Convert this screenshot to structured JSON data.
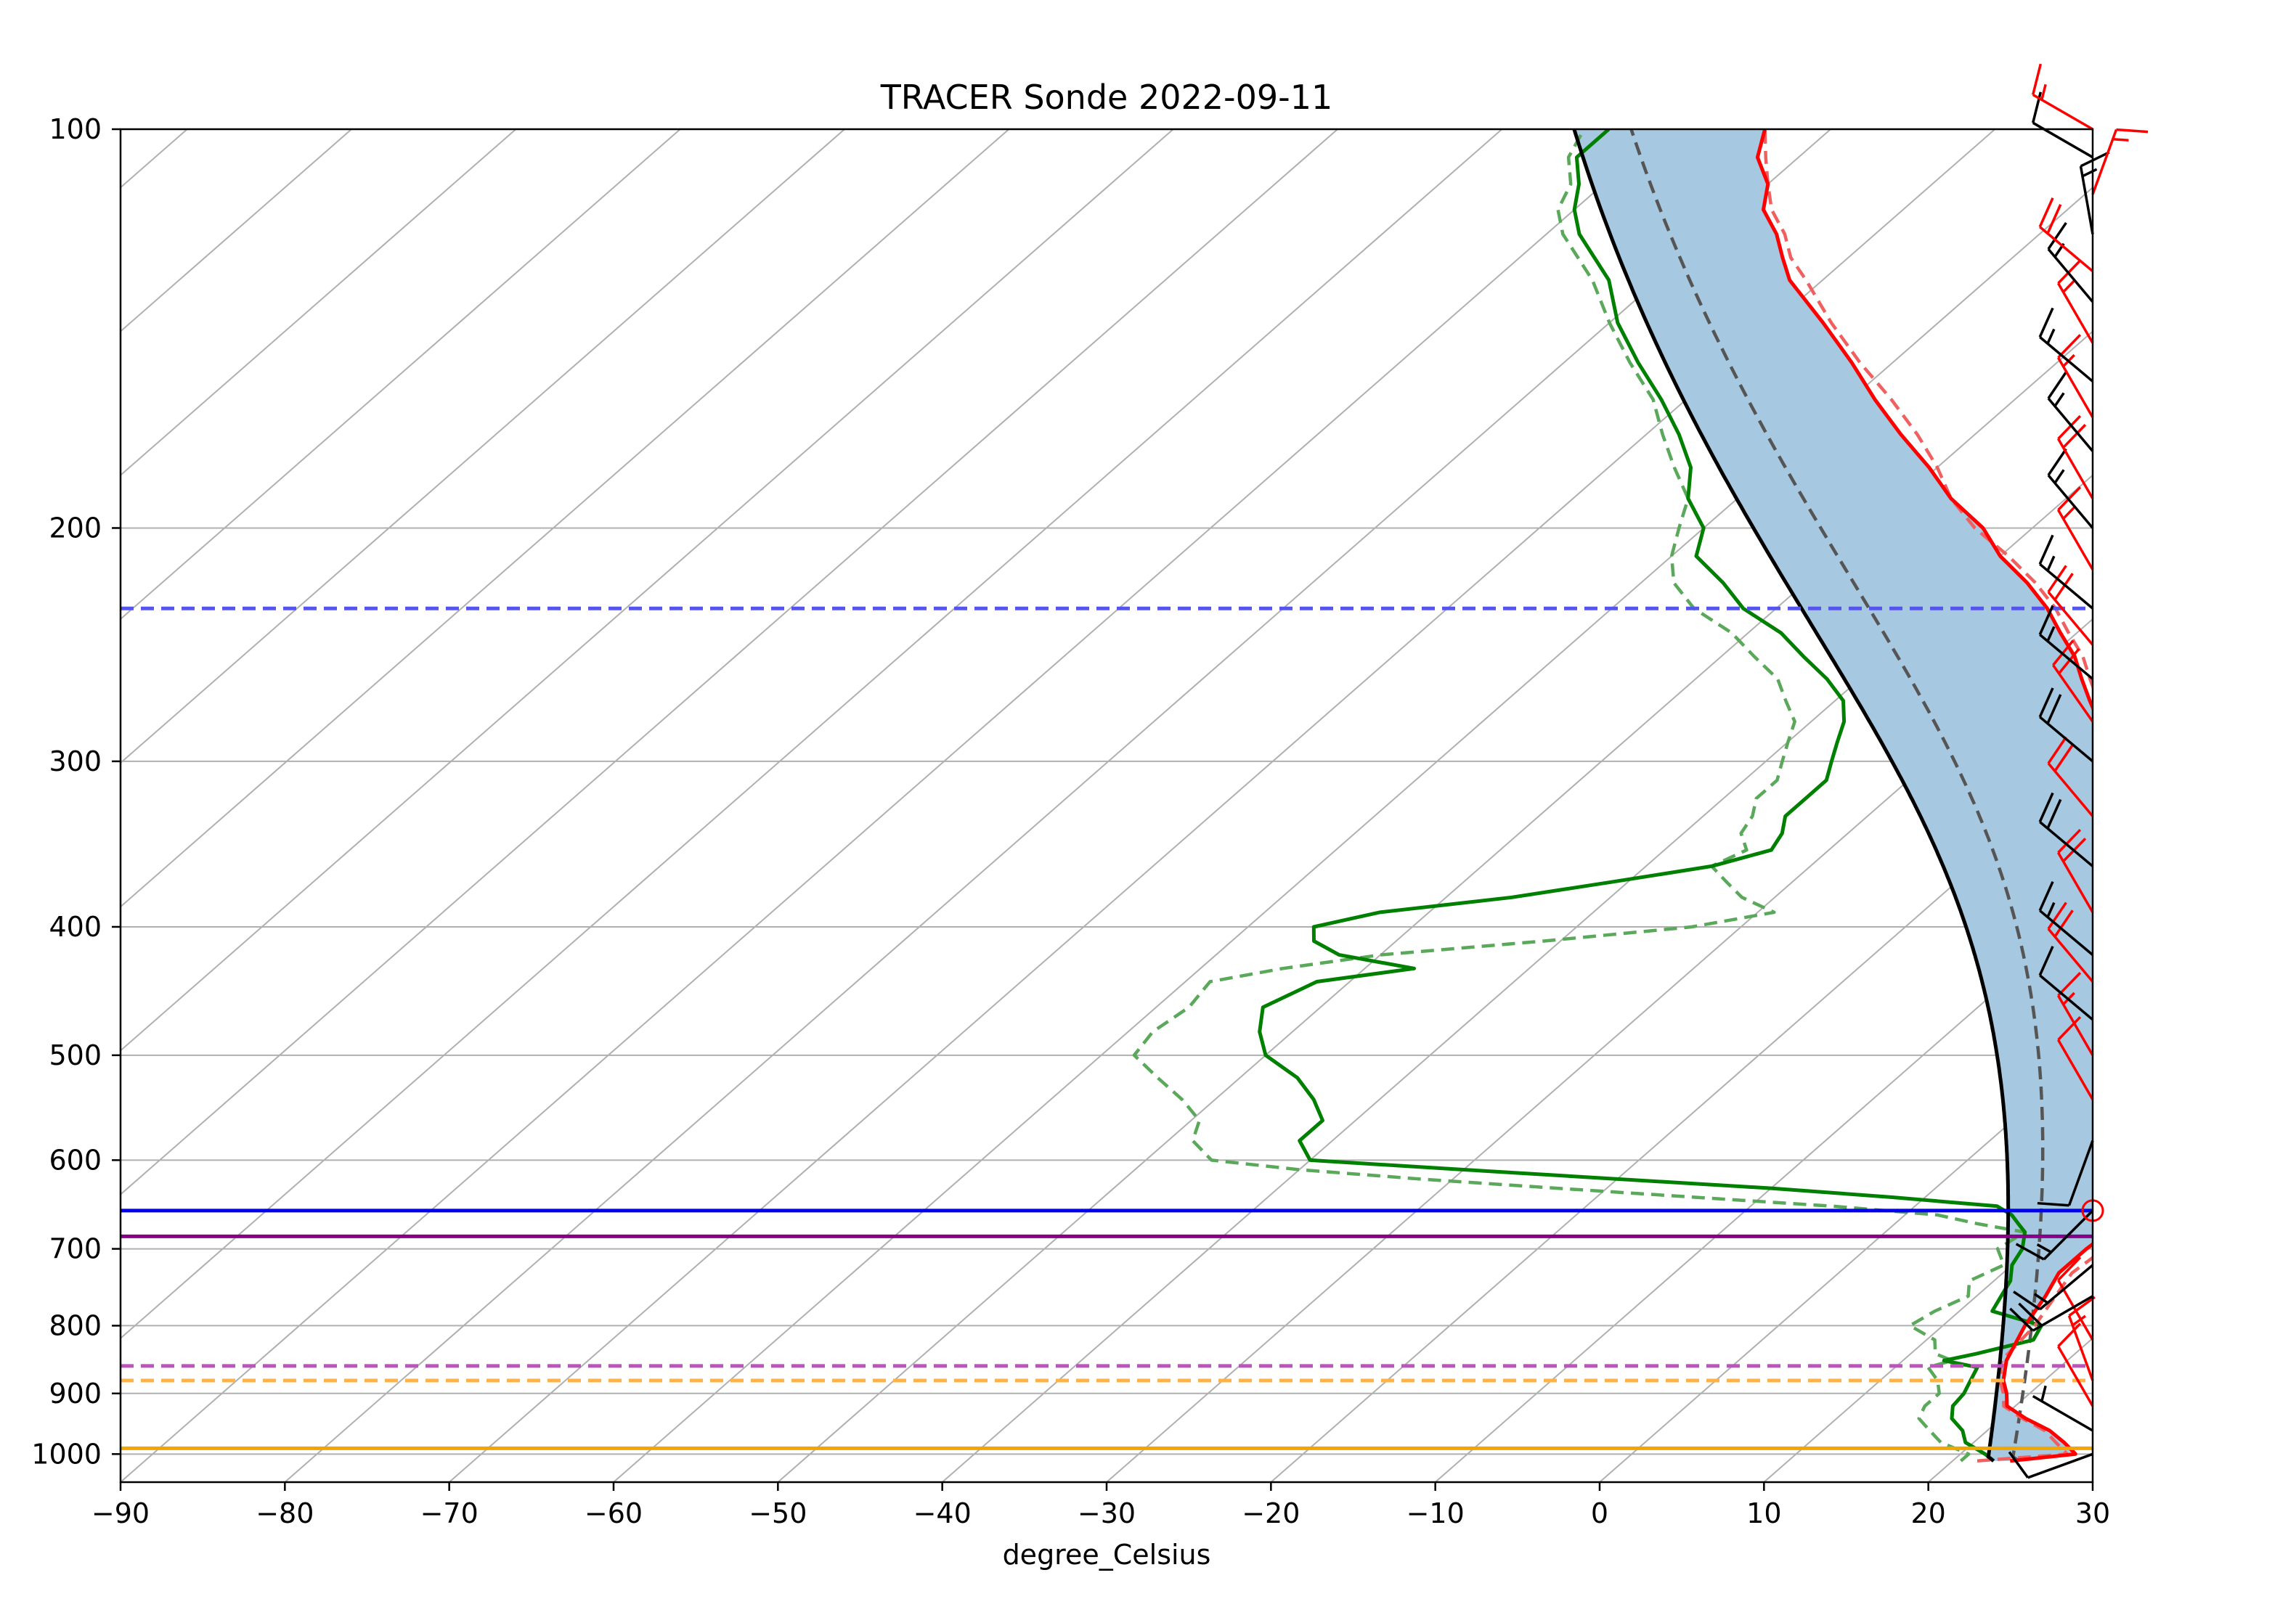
{
  "chart_data": {
    "type": "line",
    "title": "TRACER Sonde 2022-09-11",
    "xlabel": "degree_Celsius",
    "ylabel": "",
    "xlim": [
      -90,
      30
    ],
    "ylim": [
      1050,
      100
    ],
    "y_scale": "log",
    "x_ticks": [
      "−90",
      "−80",
      "−70",
      "−60",
      "−50",
      "−40",
      "−30",
      "−20",
      "−10",
      "0",
      "10",
      "20",
      "30"
    ],
    "y_ticks": [
      "100",
      "200",
      "300",
      "400",
      "500",
      "600",
      "700",
      "800",
      "900",
      "1000"
    ],
    "grid": true,
    "colors": {
      "temperature": "#ff0000",
      "temperature_dashed": "#f06060",
      "dewpoint": "#008000",
      "dewpoint_dashed": "#5aa85a",
      "parcel": "#000000",
      "virtual_parcel": "#555555",
      "cape_fill": "#a6c8e0",
      "grid": "#b0b0b0"
    },
    "series": [
      {
        "style": "red-solid",
        "p": [
          1012,
          1000,
          980,
          960,
          940,
          920,
          900,
          880,
          850,
          800,
          760,
          730,
          700,
          680,
          660,
          640,
          620,
          600,
          580,
          560,
          540,
          520,
          500,
          480,
          460,
          440,
          420,
          400,
          380,
          360,
          340,
          320,
          300,
          290,
          280,
          270,
          260,
          250,
          240,
          230,
          220,
          210,
          200,
          190,
          180,
          170,
          160,
          150,
          140,
          130,
          125,
          120,
          115,
          110,
          105,
          100
        ],
        "t": [
          23.5,
          27,
          25.5,
          23.8,
          21.5,
          19.5,
          18.6,
          17.5,
          16.3,
          15.0,
          14.2,
          13.4,
          13.4,
          13.6,
          14.3,
          15.3,
          16.3,
          15.5,
          13.9,
          12.5,
          10.5,
          8.5,
          7.0,
          5.0,
          3.0,
          0.5,
          -2.0,
          -4.5,
          -7.5,
          -10.5,
          -13.5,
          -16.5,
          -19.5,
          -21.0,
          -22.5,
          -24.5,
          -26.5,
          -28.5,
          -31.0,
          -33.5,
          -36.5,
          -40.0,
          -43.0,
          -47.0,
          -50.5,
          -54.5,
          -58.5,
          -62.5,
          -67.0,
          -72.0,
          -74.0,
          -76.0,
          -78.5,
          -80.0,
          -82.5,
          -84.0
        ]
      },
      {
        "style": "red-dashed",
        "p": [
          1012,
          1000,
          980,
          960,
          940,
          920,
          900,
          880,
          850,
          800,
          760,
          730,
          700,
          680,
          660,
          640,
          620,
          600,
          580,
          560,
          540,
          520,
          500,
          480,
          460,
          440,
          420,
          400,
          380,
          360,
          340,
          320,
          300,
          290,
          280,
          270,
          260,
          250,
          240,
          230,
          220,
          210,
          200,
          190,
          180,
          170,
          160,
          150,
          140,
          130,
          125,
          120,
          115,
          110,
          105,
          100
        ],
        "t": [
          21.5,
          26.5,
          25.0,
          23.5,
          21.3,
          19.3,
          18.4,
          17.3,
          16.0,
          15.6,
          14.8,
          14.2,
          14.5,
          15.2,
          15.5,
          16.0,
          16.3,
          15.5,
          14.4,
          13.0,
          11.0,
          9.0,
          7.5,
          5.5,
          3.5,
          1.0,
          -1.5,
          -4.0,
          -7.0,
          -10.0,
          -13.0,
          -16.0,
          -19.0,
          -20.5,
          -22.0,
          -24.0,
          -26.0,
          -28.0,
          -30.5,
          -33.0,
          -36.0,
          -39.5,
          -43.5,
          -47.0,
          -50.0,
          -53.5,
          -57.5,
          -62.0,
          -66.5,
          -71.0,
          -73.5,
          -75.5,
          -78.0,
          -80.0,
          -82.0,
          -84.0
        ]
      },
      {
        "style": "green-solid",
        "p": [
          1012,
          1000,
          980,
          960,
          940,
          920,
          900,
          880,
          860,
          850,
          840,
          820,
          800,
          780,
          760,
          740,
          720,
          700,
          680,
          670,
          660,
          650,
          640,
          630,
          620,
          610,
          600,
          580,
          560,
          540,
          520,
          500,
          480,
          460,
          440,
          430,
          420,
          410,
          400,
          390,
          380,
          370,
          360,
          350,
          340,
          330,
          320,
          310,
          300,
          290,
          280,
          270,
          260,
          250,
          240,
          230,
          220,
          210,
          200,
          190,
          180,
          170,
          160,
          150,
          140,
          130,
          120,
          115,
          110,
          105,
          100
        ],
        "t": [
          22.5,
          21.5,
          19.5,
          18.5,
          17.0,
          16.2,
          16.0,
          15.5,
          15.0,
          12.5,
          14.0,
          16.5,
          16.0,
          12.0,
          11.5,
          11.0,
          10.0,
          9.5,
          8.5,
          7.5,
          6.5,
          5.0,
          -2.0,
          -10.0,
          -20.0,
          -30.0,
          -40.0,
          -42.0,
          -42.0,
          -44.0,
          -46.5,
          -50.0,
          -52.0,
          -53.5,
          -52.0,
          -47.0,
          -52.5,
          -55.0,
          -56.0,
          -53.0,
          -46.0,
          -41.0,
          -36.0,
          -33.5,
          -34.0,
          -35.0,
          -35.0,
          -35.0,
          -36.0,
          -37.0,
          -38.0,
          -39.5,
          -42.0,
          -45.0,
          -48.0,
          -52.0,
          -55.0,
          -58.5,
          -60.0,
          -63.0,
          -65.0,
          -68.0,
          -71.5,
          -75.5,
          -79.5,
          -83.0,
          -88.0,
          -90.0,
          -91.5,
          -93.5,
          -93.5
        ]
      },
      {
        "style": "green-dashed",
        "p": [
          1012,
          1000,
          980,
          960,
          940,
          920,
          900,
          880,
          860,
          850,
          840,
          820,
          800,
          780,
          760,
          740,
          720,
          700,
          680,
          670,
          660,
          650,
          640,
          630,
          620,
          610,
          600,
          580,
          560,
          540,
          520,
          500,
          480,
          460,
          440,
          430,
          420,
          410,
          400,
          390,
          380,
          370,
          360,
          350,
          340,
          330,
          320,
          310,
          300,
          290,
          280,
          270,
          260,
          250,
          240,
          230,
          220,
          210,
          200,
          190,
          180,
          170,
          160,
          150,
          140,
          130,
          120,
          115,
          110,
          105,
          100
        ],
        "t": [
          20.5,
          20.5,
          18.0,
          16.5,
          15.0,
          14.5,
          14.5,
          13.5,
          12.0,
          13.0,
          11.5,
          10.5,
          8.0,
          8.5,
          9.5,
          8.5,
          9.5,
          8.0,
          8.5,
          5.0,
          2.0,
          -5.0,
          -14.0,
          -23.0,
          -32.0,
          -40.0,
          -46.0,
          -48.5,
          -49.5,
          -52.0,
          -55.0,
          -58.0,
          -58.5,
          -58.0,
          -58.5,
          -55.0,
          -50.0,
          -41.0,
          -33.0,
          -29.0,
          -32.0,
          -34.0,
          -36.0,
          -35.0,
          -36.5,
          -37.0,
          -38.0,
          -38.0,
          -39.0,
          -40.0,
          -41.0,
          -43.0,
          -45.0,
          -48.0,
          -51.0,
          -55.0,
          -58.0,
          -60.0,
          -61.5,
          -63.0,
          -66.0,
          -69.0,
          -72.0,
          -76.0,
          -80.0,
          -84.0,
          -89.0,
          -91.0,
          -92.0,
          -94.0,
          -95.0
        ]
      }
    ],
    "parcel": {
      "surface_pressure": 1012,
      "surface_temperature": 22.5,
      "surface_dewpoint": 22.0,
      "top_pressure": 100
    },
    "virtual_parcel": {
      "surface_pressure": 1012,
      "surface_temperature": 24.0,
      "surface_dewpoint": 23.5,
      "top_pressure": 100
    },
    "levels": [
      {
        "pressure": 230,
        "color": "#5555ee",
        "dashed": true
      },
      {
        "pressure": 655,
        "color": "#0000ee",
        "dashed": false
      },
      {
        "pressure": 685,
        "color": "#880088",
        "dashed": false
      },
      {
        "pressure": 858,
        "color": "#bb55bb",
        "dashed": true
      },
      {
        "pressure": 880,
        "color": "#ffb347",
        "dashed": true
      },
      {
        "pressure": 990,
        "color": "#f0a500",
        "dashed": false
      }
    ],
    "wind_barbs": [
      {
        "p": 1000,
        "dir": 250,
        "spd": 10,
        "color": "black"
      },
      {
        "p": 960,
        "dir": 300,
        "spd": 5,
        "color": "black"
      },
      {
        "p": 920,
        "dir": 330,
        "spd": 10,
        "color": "red"
      },
      {
        "p": 880,
        "dir": 340,
        "spd": 15,
        "color": "red"
      },
      {
        "p": 820,
        "dir": 330,
        "spd": 10,
        "color": "red"
      },
      {
        "p": 760,
        "dir": 240,
        "spd": 20,
        "color": "black"
      },
      {
        "p": 720,
        "dir": 230,
        "spd": 15,
        "color": "black"
      },
      {
        "p": 655,
        "dir": 225,
        "spd": 15,
        "color": "black"
      },
      {
        "p": 580,
        "dir": 200,
        "spd": 10,
        "color": "black"
      },
      {
        "p": 540,
        "dir": 330,
        "spd": 10,
        "color": "red"
      },
      {
        "p": 500,
        "dir": 330,
        "spd": 15,
        "color": "red"
      },
      {
        "p": 470,
        "dir": 310,
        "spd": 10,
        "color": "black"
      },
      {
        "p": 440,
        "dir": 320,
        "spd": 20,
        "color": "red"
      },
      {
        "p": 420,
        "dir": 310,
        "spd": 15,
        "color": "black"
      },
      {
        "p": 390,
        "dir": 330,
        "spd": 20,
        "color": "red"
      },
      {
        "p": 360,
        "dir": 310,
        "spd": 20,
        "color": "black"
      },
      {
        "p": 330,
        "dir": 320,
        "spd": 20,
        "color": "red"
      },
      {
        "p": 300,
        "dir": 310,
        "spd": 20,
        "color": "black"
      },
      {
        "p": 280,
        "dir": 325,
        "spd": 20,
        "color": "red"
      },
      {
        "p": 260,
        "dir": 310,
        "spd": 15,
        "color": "black"
      },
      {
        "p": 245,
        "dir": 320,
        "spd": 20,
        "color": "red"
      },
      {
        "p": 230,
        "dir": 310,
        "spd": 15,
        "color": "black"
      },
      {
        "p": 215,
        "dir": 330,
        "spd": 15,
        "color": "red"
      },
      {
        "p": 200,
        "dir": 320,
        "spd": 15,
        "color": "black"
      },
      {
        "p": 190,
        "dir": 330,
        "spd": 20,
        "color": "red"
      },
      {
        "p": 175,
        "dir": 320,
        "spd": 15,
        "color": "black"
      },
      {
        "p": 165,
        "dir": 330,
        "spd": 15,
        "color": "red"
      },
      {
        "p": 155,
        "dir": 310,
        "spd": 15,
        "color": "black"
      },
      {
        "p": 145,
        "dir": 330,
        "spd": 15,
        "color": "red"
      },
      {
        "p": 135,
        "dir": 320,
        "spd": 15,
        "color": "black"
      },
      {
        "p": 128,
        "dir": 310,
        "spd": 20,
        "color": "red"
      },
      {
        "p": 120,
        "dir": 350,
        "spd": 15,
        "color": "black"
      },
      {
        "p": 112,
        "dir": 20,
        "spd": 15,
        "color": "red"
      },
      {
        "p": 105,
        "dir": 300,
        "spd": 10,
        "color": "black"
      },
      {
        "p": 100,
        "dir": 300,
        "spd": 15,
        "color": "red"
      }
    ]
  }
}
